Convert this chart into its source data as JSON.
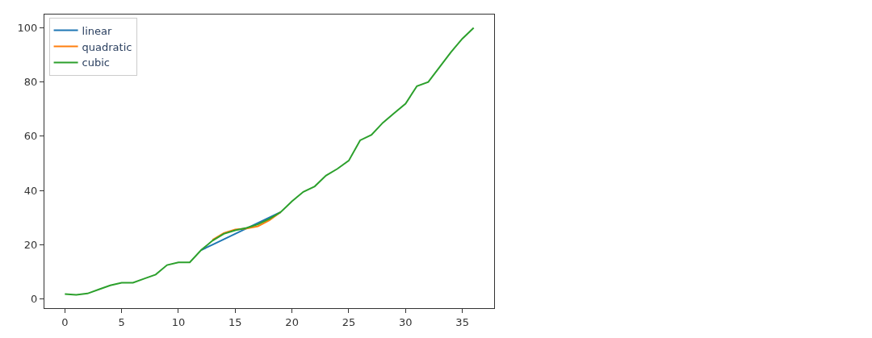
{
  "chart_data": {
    "type": "line",
    "x": [
      0,
      1,
      2,
      3,
      4,
      5,
      6,
      7,
      8,
      9,
      10,
      11,
      12,
      13,
      14,
      15,
      16,
      17,
      18,
      19,
      20,
      21,
      22,
      23,
      24,
      25,
      26,
      27,
      28,
      29,
      30,
      31,
      32,
      33,
      34,
      35,
      36
    ],
    "series": [
      {
        "name": "linear",
        "color": "#1f77b4",
        "values": [
          null,
          null,
          null,
          null,
          null,
          null,
          null,
          null,
          null,
          null,
          null,
          null,
          18,
          20,
          22,
          24,
          26,
          28,
          30,
          32,
          null,
          null,
          null,
          null,
          null,
          null,
          null,
          null,
          null,
          null,
          null,
          null,
          null,
          null,
          null,
          null,
          null
        ]
      },
      {
        "name": "quadratic",
        "color": "#ff7f0e",
        "values": [
          null,
          null,
          null,
          null,
          null,
          null,
          null,
          null,
          null,
          null,
          null,
          null,
          null,
          21.8,
          24.3,
          25.6,
          26,
          26.8,
          29,
          32,
          null,
          null,
          null,
          null,
          null,
          null,
          null,
          null,
          null,
          null,
          null,
          null,
          null,
          null,
          null,
          null,
          null
        ]
      },
      {
        "name": "cubic",
        "color": "#2ca02c",
        "values": [
          1.8,
          1.5,
          2,
          3.5,
          5,
          6,
          6,
          7.5,
          9,
          12.5,
          13.5,
          13.5,
          18,
          21.5,
          24,
          25.3,
          26.2,
          27.5,
          29.5,
          32,
          36,
          39.5,
          41.5,
          45.5,
          48,
          51,
          58.5,
          60.5,
          65,
          68.5,
          72,
          78.5,
          80,
          85.5,
          91,
          96,
          100
        ]
      }
    ],
    "xlim": [
      -1.8,
      37.8
    ],
    "xticks": [
      0,
      5,
      10,
      15,
      20,
      25,
      30,
      35
    ],
    "ylim": [
      -3.4,
      104.9
    ],
    "yticks": [
      0,
      20,
      40,
      60,
      80,
      100
    ],
    "legend": "top left",
    "marker": "none",
    "line_style": "solid"
  }
}
